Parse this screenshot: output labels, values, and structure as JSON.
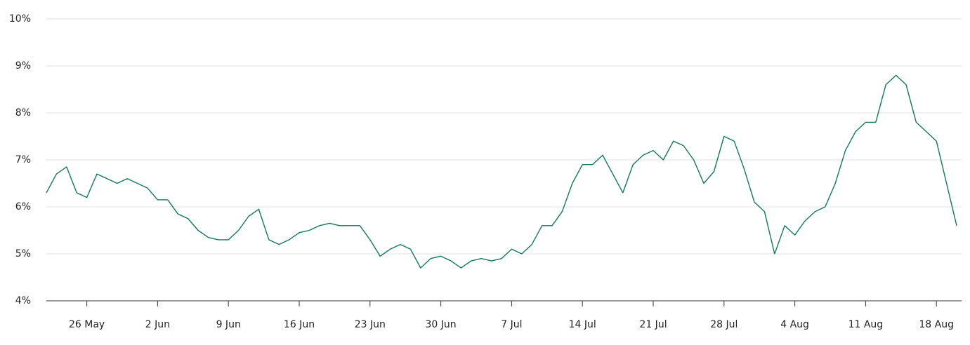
{
  "chart_data": {
    "type": "line",
    "x": [
      "22 May",
      "23 May",
      "24 May",
      "25 May",
      "26 May",
      "27 May",
      "28 May",
      "29 May",
      "30 May",
      "31 May",
      "1 Jun",
      "2 Jun",
      "3 Jun",
      "4 Jun",
      "5 Jun",
      "6 Jun",
      "7 Jun",
      "8 Jun",
      "9 Jun",
      "10 Jun",
      "11 Jun",
      "12 Jun",
      "13 Jun",
      "14 Jun",
      "15 Jun",
      "16 Jun",
      "17 Jun",
      "18 Jun",
      "19 Jun",
      "20 Jun",
      "21 Jun",
      "22 Jun",
      "23 Jun",
      "24 Jun",
      "25 Jun",
      "26 Jun",
      "27 Jun",
      "28 Jun",
      "29 Jun",
      "30 Jun",
      "1 Jul",
      "2 Jul",
      "3 Jul",
      "4 Jul",
      "5 Jul",
      "6 Jul",
      "7 Jul",
      "8 Jul",
      "9 Jul",
      "10 Jul",
      "11 Jul",
      "12 Jul",
      "13 Jul",
      "14 Jul",
      "15 Jul",
      "16 Jul",
      "17 Jul",
      "18 Jul",
      "19 Jul",
      "20 Jul",
      "21 Jul",
      "22 Jul",
      "23 Jul",
      "24 Jul",
      "25 Jul",
      "26 Jul",
      "27 Jul",
      "28 Jul",
      "29 Jul",
      "30 Jul",
      "31 Jul",
      "1 Aug",
      "2 Aug",
      "3 Aug",
      "4 Aug",
      "5 Aug",
      "6 Aug",
      "7 Aug",
      "8 Aug",
      "9 Aug",
      "10 Aug",
      "11 Aug",
      "12 Aug",
      "13 Aug",
      "14 Aug",
      "15 Aug",
      "16 Aug",
      "17 Aug",
      "18 Aug",
      "19 Aug",
      "20 Aug"
    ],
    "series": [
      {
        "color": "#127a55",
        "values": [
          6.3,
          6.7,
          6.85,
          6.3,
          6.2,
          6.7,
          6.6,
          6.5,
          6.6,
          6.5,
          6.4,
          6.15,
          6.15,
          5.85,
          5.75,
          5.5,
          5.35,
          5.3,
          5.3,
          5.5,
          5.8,
          5.95,
          5.3,
          5.2,
          5.3,
          5.45,
          5.5,
          5.6,
          5.65,
          5.6,
          5.6,
          5.6,
          5.3,
          4.95,
          5.1,
          5.2,
          5.1,
          4.7,
          4.9,
          4.95,
          4.85,
          4.7,
          4.85,
          4.9,
          4.85,
          4.9,
          5.1,
          5.0,
          5.2,
          5.6,
          5.6,
          5.9,
          6.5,
          6.9,
          6.9,
          7.1,
          6.7,
          6.3,
          6.9,
          7.1,
          7.2,
          7.0,
          7.4,
          7.3,
          7.0,
          6.5,
          6.75,
          7.5,
          7.4,
          6.8,
          6.1,
          5.9,
          5.0,
          5.6,
          5.4,
          5.7,
          5.9,
          6.0,
          6.5,
          7.2,
          7.6,
          7.8,
          7.8,
          8.6,
          8.8,
          8.6,
          7.8,
          7.6,
          7.4,
          6.5,
          5.6
        ]
      }
    ],
    "xticks": [
      "26 May",
      "2 Jun",
      "9 Jun",
      "16 Jun",
      "23 Jun",
      "30 Jun",
      "7 Jul",
      "14 Jul",
      "21 Jul",
      "28 Jul",
      "4 Aug",
      "11 Aug",
      "18 Aug"
    ],
    "ylim": [
      4,
      10
    ],
    "yticks": [
      {
        "value": 4,
        "label": "4%"
      },
      {
        "value": 5,
        "label": "5%"
      },
      {
        "value": 6,
        "label": "6%"
      },
      {
        "value": 7,
        "label": "7%"
      },
      {
        "value": 8,
        "label": "8%"
      },
      {
        "value": 9,
        "label": "9%"
      },
      {
        "value": 10,
        "label": "10%"
      }
    ],
    "grid": true
  }
}
